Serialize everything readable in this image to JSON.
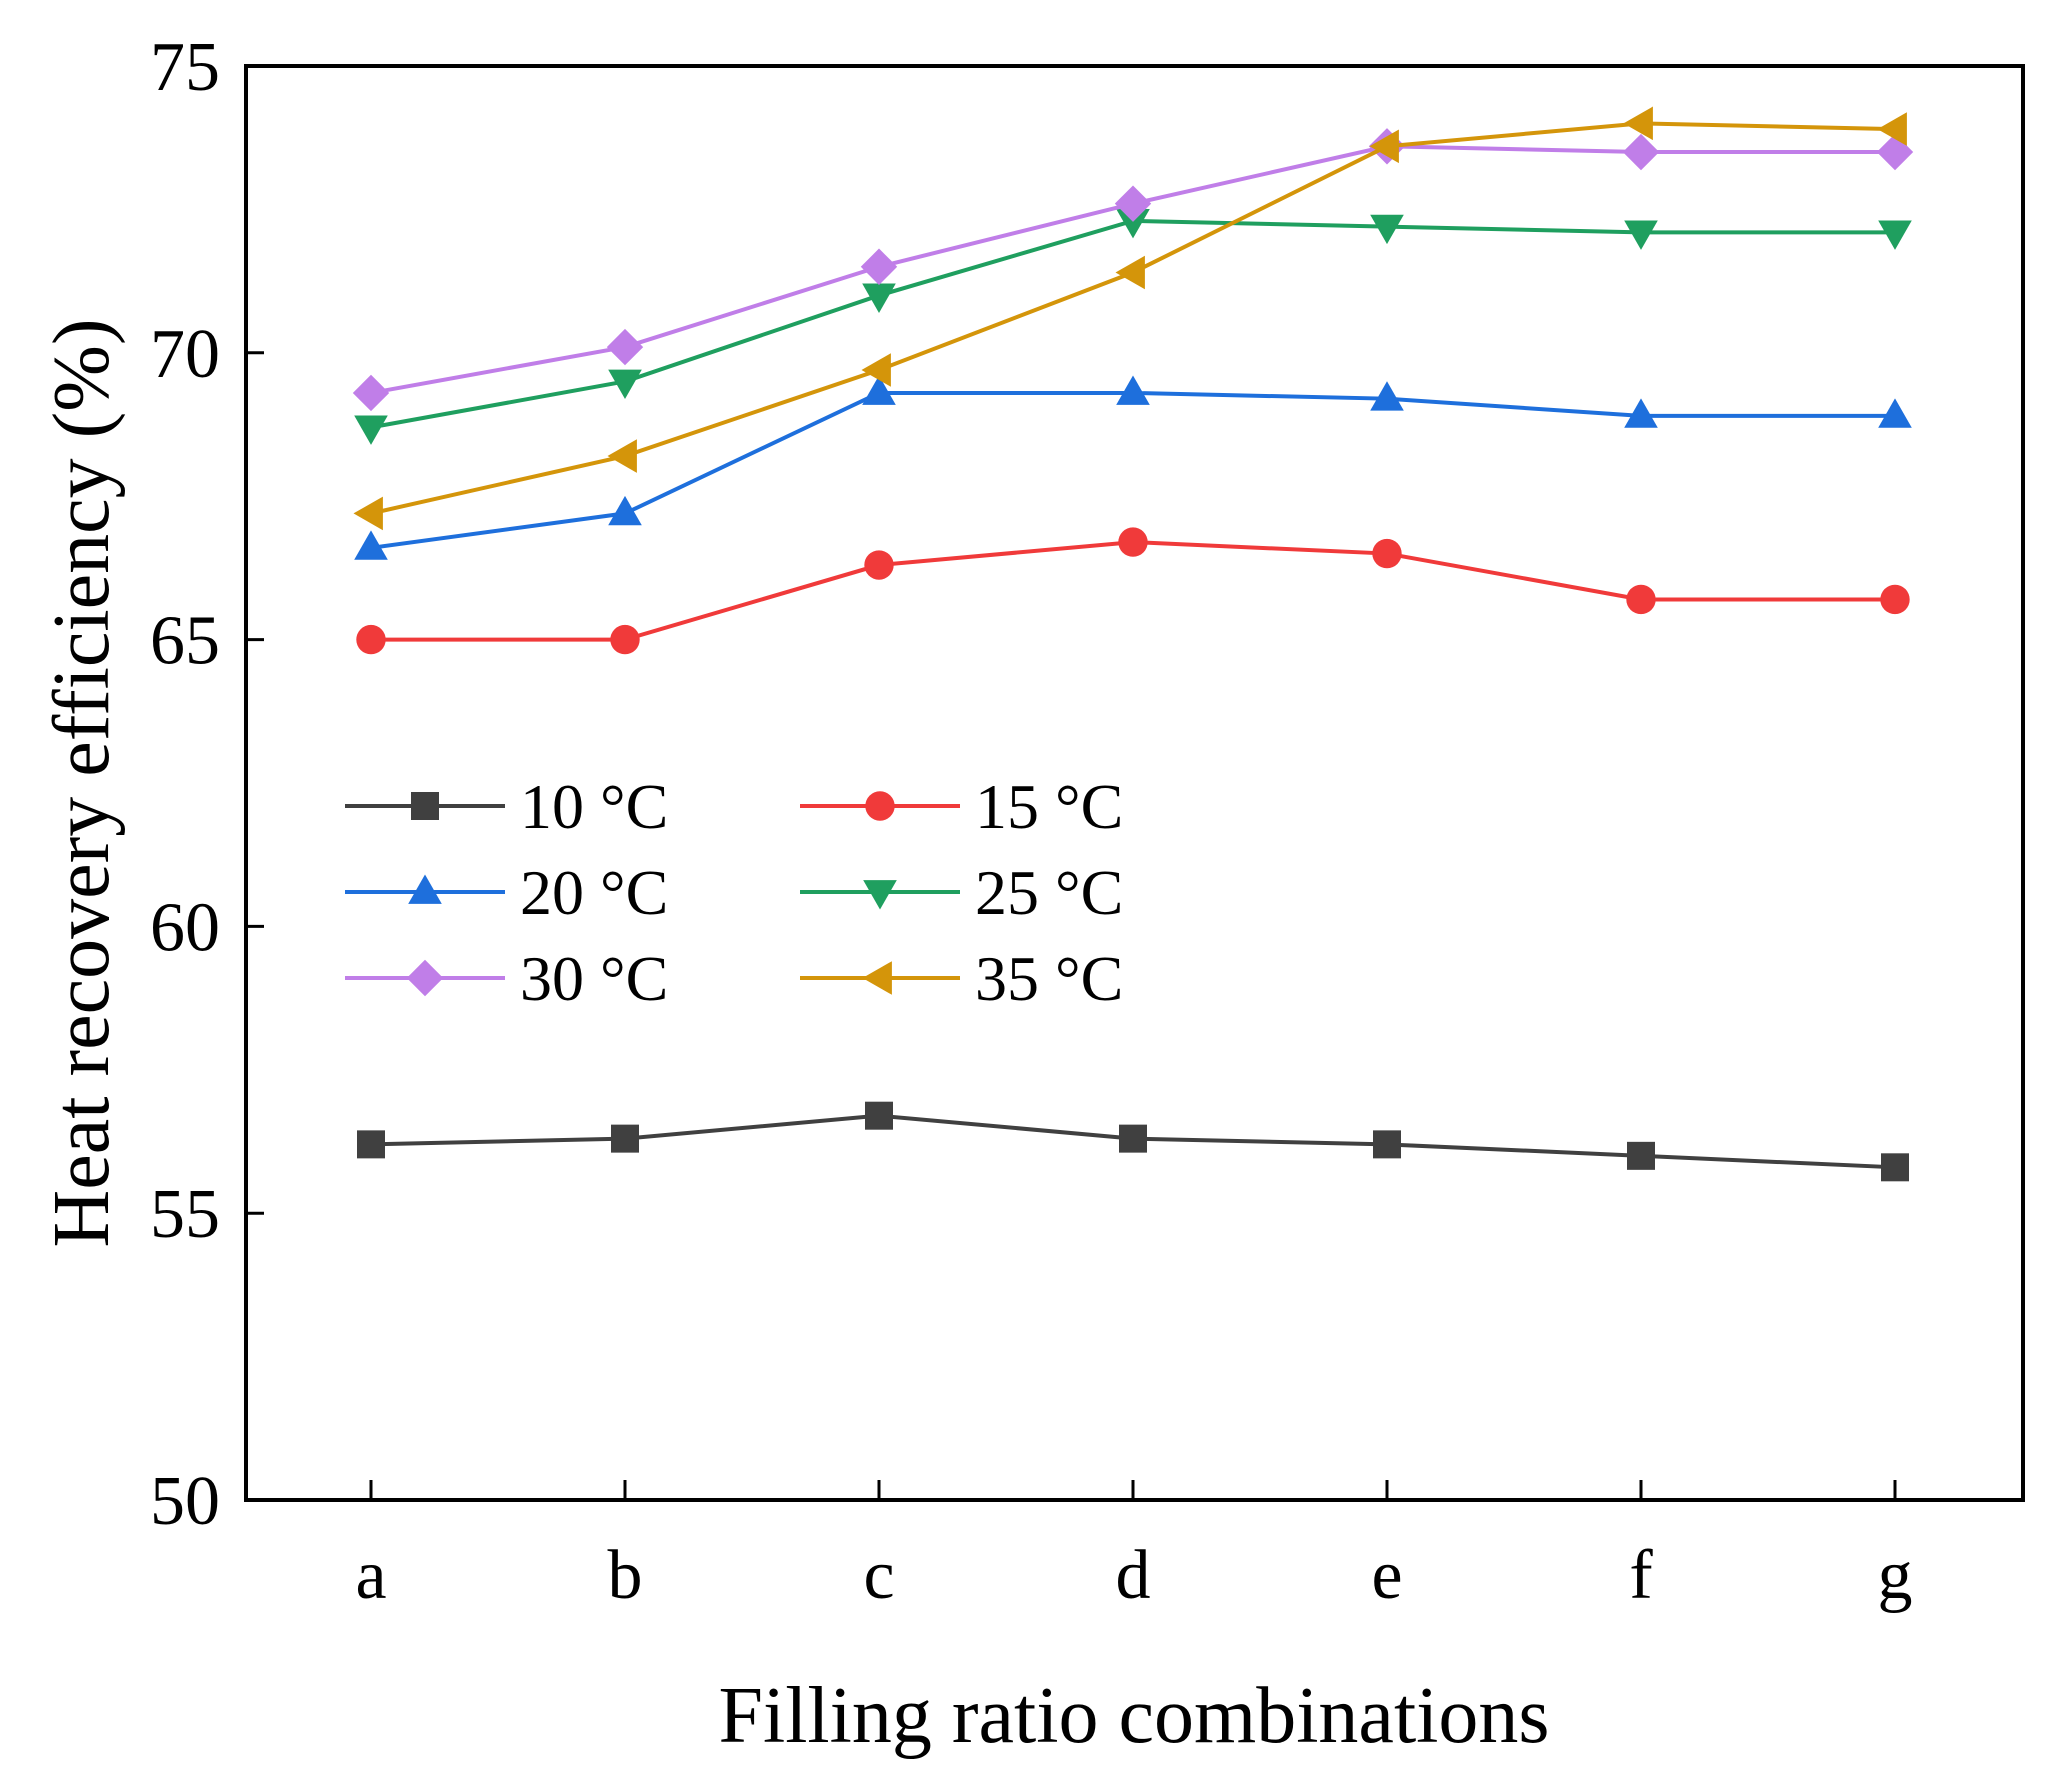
{
  "chart_data": {
    "type": "line",
    "title": "",
    "xlabel": "Filling ratio combinations",
    "ylabel": "Heat recovery efficiency (%)",
    "categories": [
      "a",
      "b",
      "c",
      "d",
      "e",
      "f",
      "g"
    ],
    "ylim": [
      50,
      75
    ],
    "yticks": [
      50,
      55,
      60,
      65,
      70,
      75
    ],
    "grid": false,
    "legend_position": "center-left",
    "series": [
      {
        "name": "10 °C",
        "color": "#404040",
        "marker": "square",
        "values": [
          56.2,
          56.3,
          56.7,
          56.3,
          56.2,
          56.0,
          55.8
        ]
      },
      {
        "name": "15 °C",
        "color": "#f03a3a",
        "marker": "circle",
        "values": [
          65.0,
          65.0,
          66.3,
          66.7,
          66.5,
          65.7,
          65.7
        ]
      },
      {
        "name": "20 °C",
        "color": "#1e6fdc",
        "marker": "triangle-up",
        "values": [
          66.6,
          67.2,
          69.3,
          69.3,
          69.2,
          68.9,
          68.9
        ]
      },
      {
        "name": "25 °C",
        "color": "#1f9f5f",
        "marker": "triangle-down",
        "values": [
          68.7,
          69.5,
          71.0,
          72.3,
          72.2,
          72.1,
          72.1
        ]
      },
      {
        "name": "30 °C",
        "color": "#c07ee8",
        "marker": "diamond",
        "values": [
          69.3,
          70.1,
          71.5,
          72.6,
          73.6,
          73.5,
          73.5
        ]
      },
      {
        "name": "35 °C",
        "color": "#d4950a",
        "marker": "triangle-left",
        "values": [
          67.2,
          68.2,
          69.7,
          71.4,
          73.6,
          74.0,
          73.9
        ]
      }
    ]
  }
}
